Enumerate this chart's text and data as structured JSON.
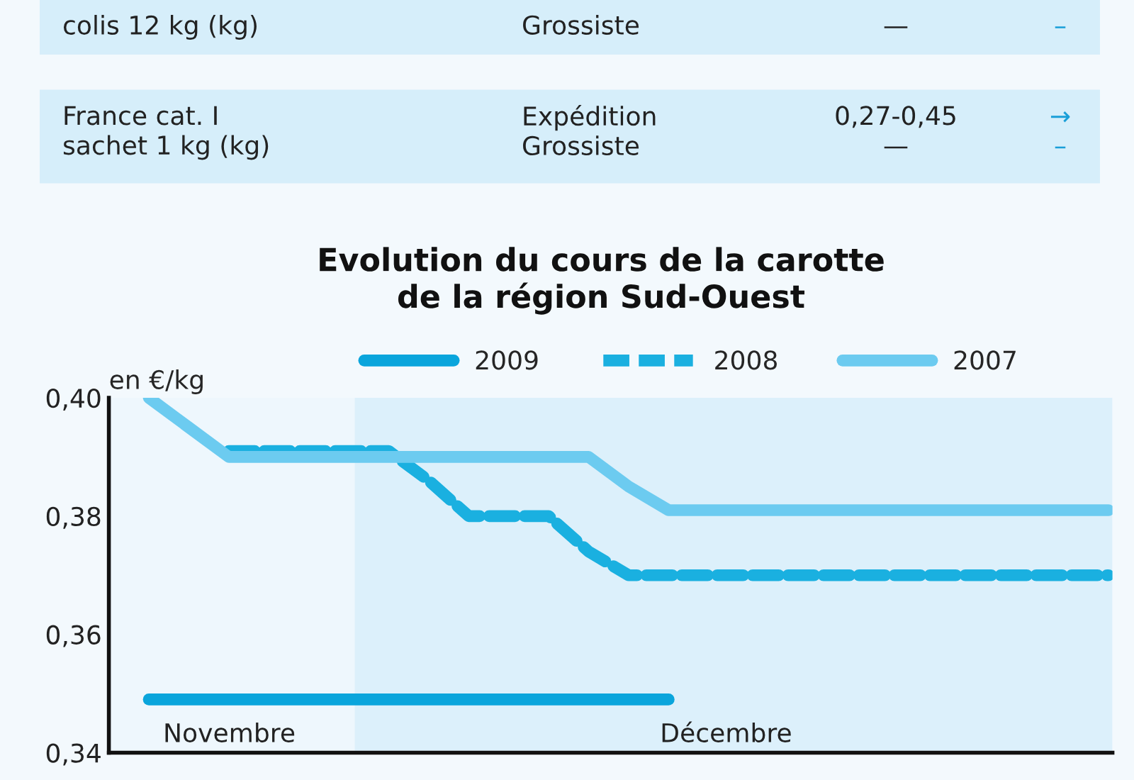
{
  "chart_data": {
    "type": "line",
    "title": "Evolution du cours de la carotte\nde la région Sud-Ouest",
    "ylabel": "en €/kg",
    "categories": [
      null,
      null,
      null,
      null,
      null,
      null,
      null,
      null,
      null,
      null,
      null,
      null,
      null,
      null,
      null,
      null,
      null,
      null,
      null,
      null,
      null,
      null,
      null,
      null,
      null
    ],
    "ylim": [
      0.34,
      0.4
    ],
    "yticks": [
      {
        "value": 0.34,
        "label": "0,34"
      },
      {
        "value": 0.36,
        "label": "0,36"
      },
      {
        "value": 0.38,
        "label": "0,38"
      },
      {
        "value": 0.4,
        "label": "0,40"
      }
    ],
    "series": [
      {
        "name": "2009",
        "color": "#0aa5dc",
        "line_style": "solid",
        "values": [
          0.349,
          0.349,
          0.349,
          0.349,
          0.349,
          0.349,
          0.349,
          0.349,
          0.349,
          0.349,
          0.349,
          0.349,
          0.349,
          0.349,
          null,
          null,
          null,
          null,
          null,
          null,
          null,
          null,
          null,
          null,
          null
        ]
      },
      {
        "name": "2008",
        "color": "#1ab0e0",
        "line_style": "dashed",
        "values": [
          null,
          null,
          0.391,
          0.391,
          0.391,
          0.391,
          0.391,
          0.386,
          0.38,
          0.38,
          0.38,
          0.374,
          0.37,
          0.37,
          0.37,
          0.37,
          0.37,
          0.37,
          0.37,
          0.37,
          0.37,
          0.37,
          0.37,
          0.37,
          0.37
        ]
      },
      {
        "name": "2007",
        "color": "#6ccbf0",
        "line_style": "solid",
        "values": [
          0.4,
          0.395,
          0.39,
          0.39,
          0.39,
          0.39,
          0.39,
          0.39,
          0.39,
          0.39,
          0.39,
          0.39,
          0.385,
          0.381,
          0.381,
          0.381,
          0.381,
          0.381,
          0.381,
          0.381,
          0.381,
          0.381,
          0.381,
          0.381,
          0.381
        ]
      }
    ],
    "annotations": [
      "Novembre",
      "Décembre",
      "colis 12 kg (kg)",
      "Grossiste",
      "—",
      "–",
      "France cat. I\nsachet 1 kg (kg)",
      "Expédition\nGrossiste",
      "0,27-0,45\n—",
      "→\n–"
    ],
    "grid": false,
    "legend": "top"
  }
}
